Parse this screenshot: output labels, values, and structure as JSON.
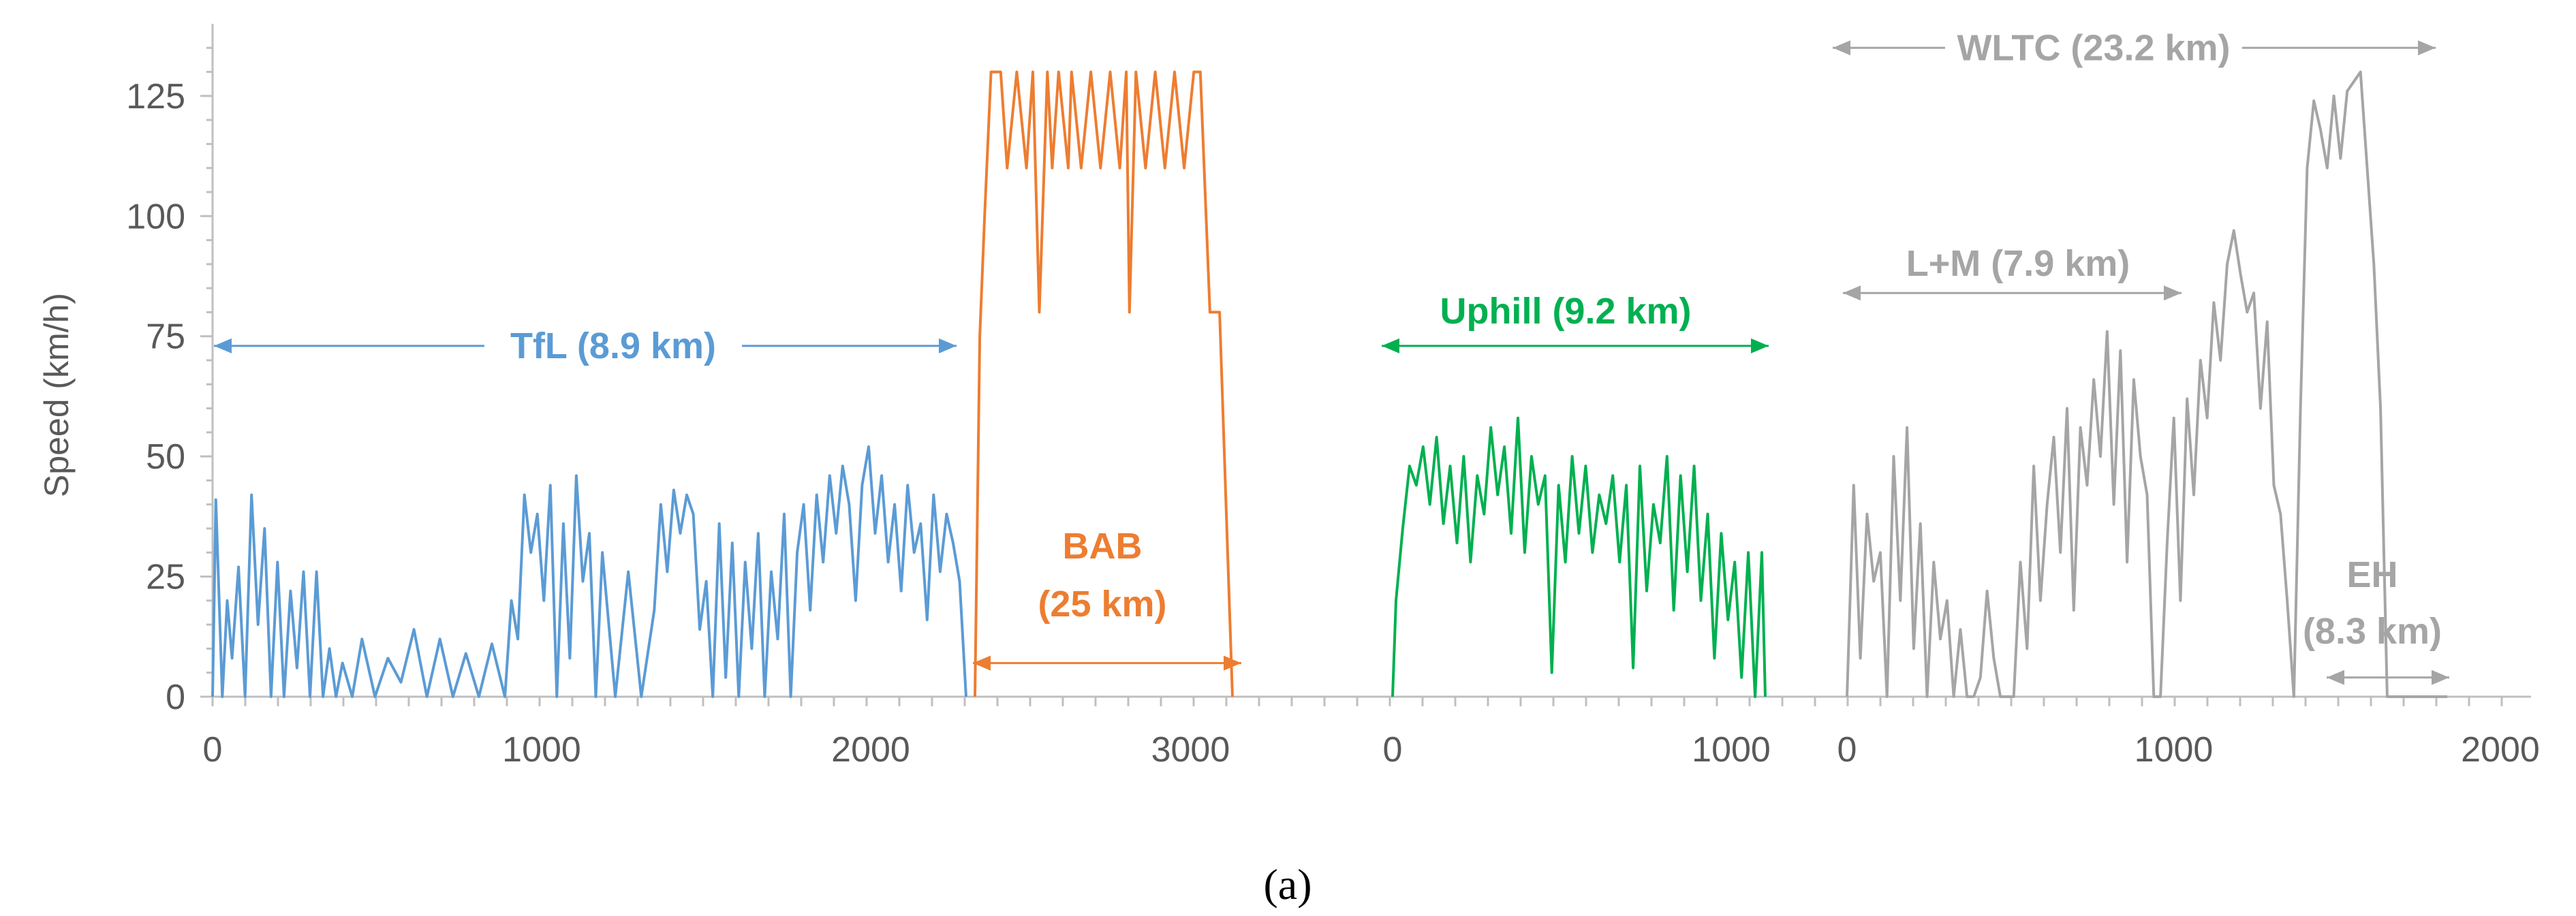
{
  "chart_data": {
    "type": "line",
    "ylabel": "Speed (km/h)",
    "ylim": [
      0,
      140
    ],
    "y_ticks": [
      0,
      25,
      50,
      75,
      100,
      125
    ],
    "caption": "(a)",
    "colors": {
      "tfl": "#5B9BD5",
      "bab": "#ED7D31",
      "uphill": "#00B050",
      "wltc": "#A5A5A5",
      "axis": "#BFBFBF",
      "text": "#595959"
    },
    "segments": [
      {
        "id": "tfl",
        "name": "TfL",
        "label": "TfL (8.9 km)",
        "x_range": [
          0,
          2320
        ],
        "x_ticks": [
          0,
          1000,
          2000
        ],
        "x": [
          0,
          10,
          30,
          45,
          60,
          80,
          100,
          120,
          140,
          160,
          180,
          200,
          220,
          240,
          260,
          280,
          300,
          320,
          340,
          360,
          380,
          400,
          430,
          460,
          500,
          540,
          580,
          620,
          660,
          700,
          740,
          780,
          820,
          860,
          900,
          920,
          940,
          960,
          980,
          1000,
          1020,
          1040,
          1060,
          1080,
          1100,
          1120,
          1140,
          1160,
          1180,
          1200,
          1240,
          1280,
          1320,
          1360,
          1380,
          1400,
          1420,
          1440,
          1460,
          1480,
          1500,
          1520,
          1540,
          1560,
          1580,
          1600,
          1620,
          1640,
          1660,
          1680,
          1700,
          1720,
          1740,
          1760,
          1780,
          1800,
          1820,
          1840,
          1860,
          1880,
          1900,
          1920,
          1940,
          1960,
          1980,
          2000,
          2020,
          2040,
          2060,
          2080,
          2100,
          2120,
          2140,
          2160,
          2180,
          2200,
          2220,
          2240,
          2260,
          2280,
          2300,
          2320
        ],
        "y": [
          0,
          41,
          0,
          20,
          8,
          27,
          0,
          42,
          15,
          35,
          0,
          28,
          0,
          22,
          6,
          26,
          0,
          26,
          0,
          10,
          0,
          7,
          0,
          12,
          0,
          8,
          3,
          14,
          0,
          12,
          0,
          9,
          0,
          11,
          0,
          20,
          12,
          42,
          30,
          38,
          20,
          44,
          0,
          36,
          8,
          46,
          24,
          34,
          0,
          30,
          0,
          26,
          0,
          18,
          40,
          26,
          43,
          34,
          42,
          38,
          14,
          24,
          0,
          36,
          4,
          32,
          0,
          28,
          10,
          34,
          0,
          26,
          12,
          38,
          0,
          30,
          40,
          18,
          42,
          28,
          46,
          34,
          48,
          40,
          20,
          44,
          52,
          34,
          46,
          28,
          40,
          22,
          44,
          30,
          36,
          16,
          42,
          26,
          38,
          32,
          24,
          0
        ],
        "annotation_arrow_x": [
          0,
          2320
        ],
        "annotation_y": 73
      },
      {
        "id": "bab",
        "name": "BAB",
        "label_lines": [
          "BAB",
          "(25 km)"
        ],
        "x_range": [
          0,
          800
        ],
        "x_ticks": [
          3000
        ],
        "x": [
          0,
          15,
          30,
          50,
          80,
          100,
          130,
          160,
          180,
          200,
          225,
          240,
          260,
          290,
          300,
          330,
          360,
          390,
          420,
          450,
          470,
          480,
          500,
          530,
          560,
          590,
          620,
          650,
          680,
          700,
          730,
          760,
          785,
          800
        ],
        "y": [
          0,
          75,
          100,
          130,
          130,
          110,
          130,
          110,
          130,
          80,
          130,
          110,
          130,
          110,
          130,
          110,
          130,
          110,
          130,
          110,
          130,
          80,
          130,
          110,
          130,
          110,
          130,
          110,
          130,
          130,
          80,
          80,
          30,
          0
        ],
        "annotation_arrow_x": [
          0,
          800
        ],
        "annotation_y": 7
      },
      {
        "id": "uphill",
        "name": "Uphill",
        "label": "Uphill (9.2 km)",
        "x_range": [
          0,
          1100
        ],
        "x_ticks": [
          0,
          1000
        ],
        "x": [
          0,
          10,
          30,
          50,
          70,
          90,
          110,
          130,
          150,
          170,
          190,
          210,
          230,
          250,
          270,
          290,
          310,
          330,
          350,
          370,
          390,
          410,
          430,
          450,
          470,
          490,
          510,
          530,
          550,
          570,
          590,
          610,
          630,
          650,
          670,
          690,
          710,
          730,
          750,
          770,
          790,
          810,
          830,
          850,
          870,
          890,
          910,
          930,
          950,
          970,
          990,
          1010,
          1030,
          1050,
          1070,
          1090,
          1100
        ],
        "y": [
          0,
          20,
          35,
          48,
          44,
          52,
          40,
          54,
          36,
          48,
          32,
          50,
          28,
          46,
          38,
          56,
          42,
          52,
          34,
          58,
          30,
          50,
          40,
          46,
          5,
          44,
          28,
          50,
          34,
          48,
          30,
          42,
          36,
          46,
          28,
          44,
          6,
          48,
          22,
          40,
          32,
          50,
          18,
          46,
          26,
          48,
          20,
          38,
          8,
          34,
          16,
          28,
          4,
          30,
          0,
          30,
          0
        ],
        "annotation_arrow_x": [
          0,
          1100
        ],
        "annotation_y": 73
      },
      {
        "id": "wltc",
        "name": "WLTC",
        "label": "WLTC (23.2 km)",
        "x_range": [
          0,
          1800
        ],
        "x_ticks": [
          0,
          1000,
          2000
        ],
        "x": [
          0,
          20,
          40,
          60,
          80,
          100,
          120,
          140,
          160,
          180,
          200,
          220,
          240,
          260,
          280,
          300,
          320,
          340,
          360,
          380,
          400,
          420,
          440,
          460,
          480,
          500,
          520,
          540,
          560,
          580,
          600,
          620,
          640,
          660,
          680,
          700,
          720,
          740,
          760,
          780,
          800,
          820,
          840,
          860,
          880,
          900,
          920,
          940,
          960,
          980,
          1000,
          1020,
          1040,
          1060,
          1080,
          1100,
          1120,
          1140,
          1160,
          1180,
          1200,
          1220,
          1240,
          1260,
          1280,
          1300,
          1320,
          1340,
          1360,
          1380,
          1400,
          1420,
          1440,
          1460,
          1480,
          1500,
          1520,
          1540,
          1560,
          1580,
          1600,
          1620,
          1640,
          1660,
          1680,
          1700,
          1720,
          1740,
          1760,
          1780,
          1800
        ],
        "y": [
          0,
          44,
          8,
          38,
          24,
          30,
          0,
          50,
          20,
          56,
          10,
          36,
          0,
          28,
          12,
          20,
          0,
          14,
          0,
          0,
          4,
          22,
          8,
          0,
          0,
          0,
          28,
          10,
          48,
          20,
          40,
          54,
          30,
          60,
          18,
          56,
          44,
          66,
          50,
          76,
          40,
          72,
          28,
          66,
          50,
          42,
          0,
          0,
          32,
          58,
          20,
          62,
          42,
          70,
          58,
          82,
          70,
          90,
          97,
          88,
          80,
          84,
          60,
          78,
          44,
          38,
          20,
          0,
          60,
          110,
          124,
          118,
          110,
          125,
          112,
          126,
          128,
          130,
          110,
          90,
          60,
          0,
          0,
          0,
          0,
          0,
          0,
          0,
          0,
          0,
          0
        ],
        "annotation_arrow_x": [
          0,
          1800
        ],
        "annotation_y": 135,
        "sub_annotations": [
          {
            "label": "L+M (7.9 km)",
            "x_range": [
              0,
              1000
            ],
            "y": 84
          },
          {
            "label_lines": [
              "EH",
              "(8.3 km)"
            ],
            "x_range": [
              1450,
              1800
            ],
            "y": 4
          }
        ]
      }
    ]
  }
}
